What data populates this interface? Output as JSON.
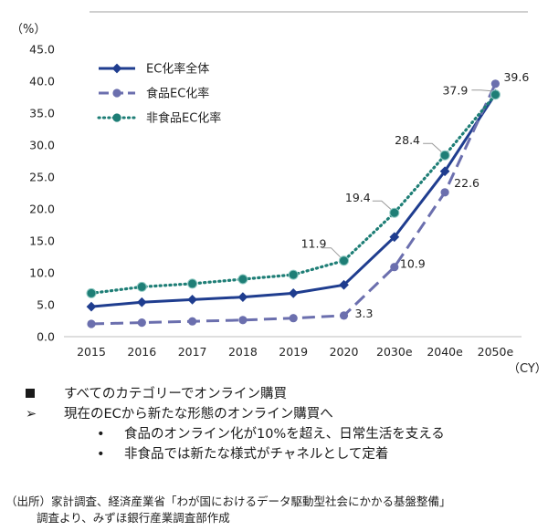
{
  "chart_data": {
    "type": "line",
    "unit_label": "（%）",
    "x_unit_label": "（CY）",
    "categories": [
      "2015",
      "2016",
      "2017",
      "2018",
      "2019",
      "2020",
      "2030e",
      "2040e",
      "2050e"
    ],
    "ylim": [
      0,
      45
    ],
    "yticks": [
      "0.0",
      "5.0",
      "10.0",
      "15.0",
      "20.0",
      "25.0",
      "30.0",
      "35.0",
      "40.0",
      "45.0"
    ],
    "grid": false,
    "legend_position": "top-left",
    "series": [
      {
        "name": "EC化率全体",
        "color": "#1f3d8f",
        "style": "solid",
        "values": [
          4.7,
          5.4,
          5.8,
          6.2,
          6.8,
          8.1,
          15.6,
          25.9,
          38.0
        ]
      },
      {
        "name": "食品EC化率",
        "color": "#6b6fae",
        "style": "dashed",
        "values": [
          2.0,
          2.2,
          2.4,
          2.6,
          2.9,
          3.3,
          10.9,
          22.6,
          39.6
        ]
      },
      {
        "name": "非食品EC化率",
        "color": "#1e7e76",
        "style": "dotted",
        "values": [
          6.8,
          7.8,
          8.3,
          9.0,
          9.7,
          11.9,
          19.4,
          28.4,
          37.9
        ]
      }
    ],
    "annotations": [
      {
        "series": 2,
        "index": 5,
        "text": "11.9"
      },
      {
        "series": 2,
        "index": 6,
        "text": "19.4"
      },
      {
        "series": 2,
        "index": 7,
        "text": "28.4"
      },
      {
        "series": 2,
        "index": 8,
        "text": "37.9"
      },
      {
        "series": 1,
        "index": 5,
        "text": "3.3"
      },
      {
        "series": 1,
        "index": 6,
        "text": "10.9"
      },
      {
        "series": 1,
        "index": 7,
        "text": "22.6"
      },
      {
        "series": 1,
        "index": 8,
        "text": "39.6"
      }
    ]
  },
  "notes": {
    "main1_marker": "■",
    "main1": "すべてのカテゴリーでオンライン購買",
    "main2_marker": "➢",
    "main2": "現在のECから新たな形態のオンライン購買へ",
    "bullet": "•",
    "sub1": "食品のオンライン化が10%を超え、日常生活を支える",
    "sub2": "非食品では新たな様式がチャネルとして定着"
  },
  "source": {
    "line1": "（出所）家計調査、経済産業省「わが国におけるデータ駆動型社会にかかる基盤整備」",
    "line2": "調査より、みずほ銀行産業調査部作成"
  }
}
